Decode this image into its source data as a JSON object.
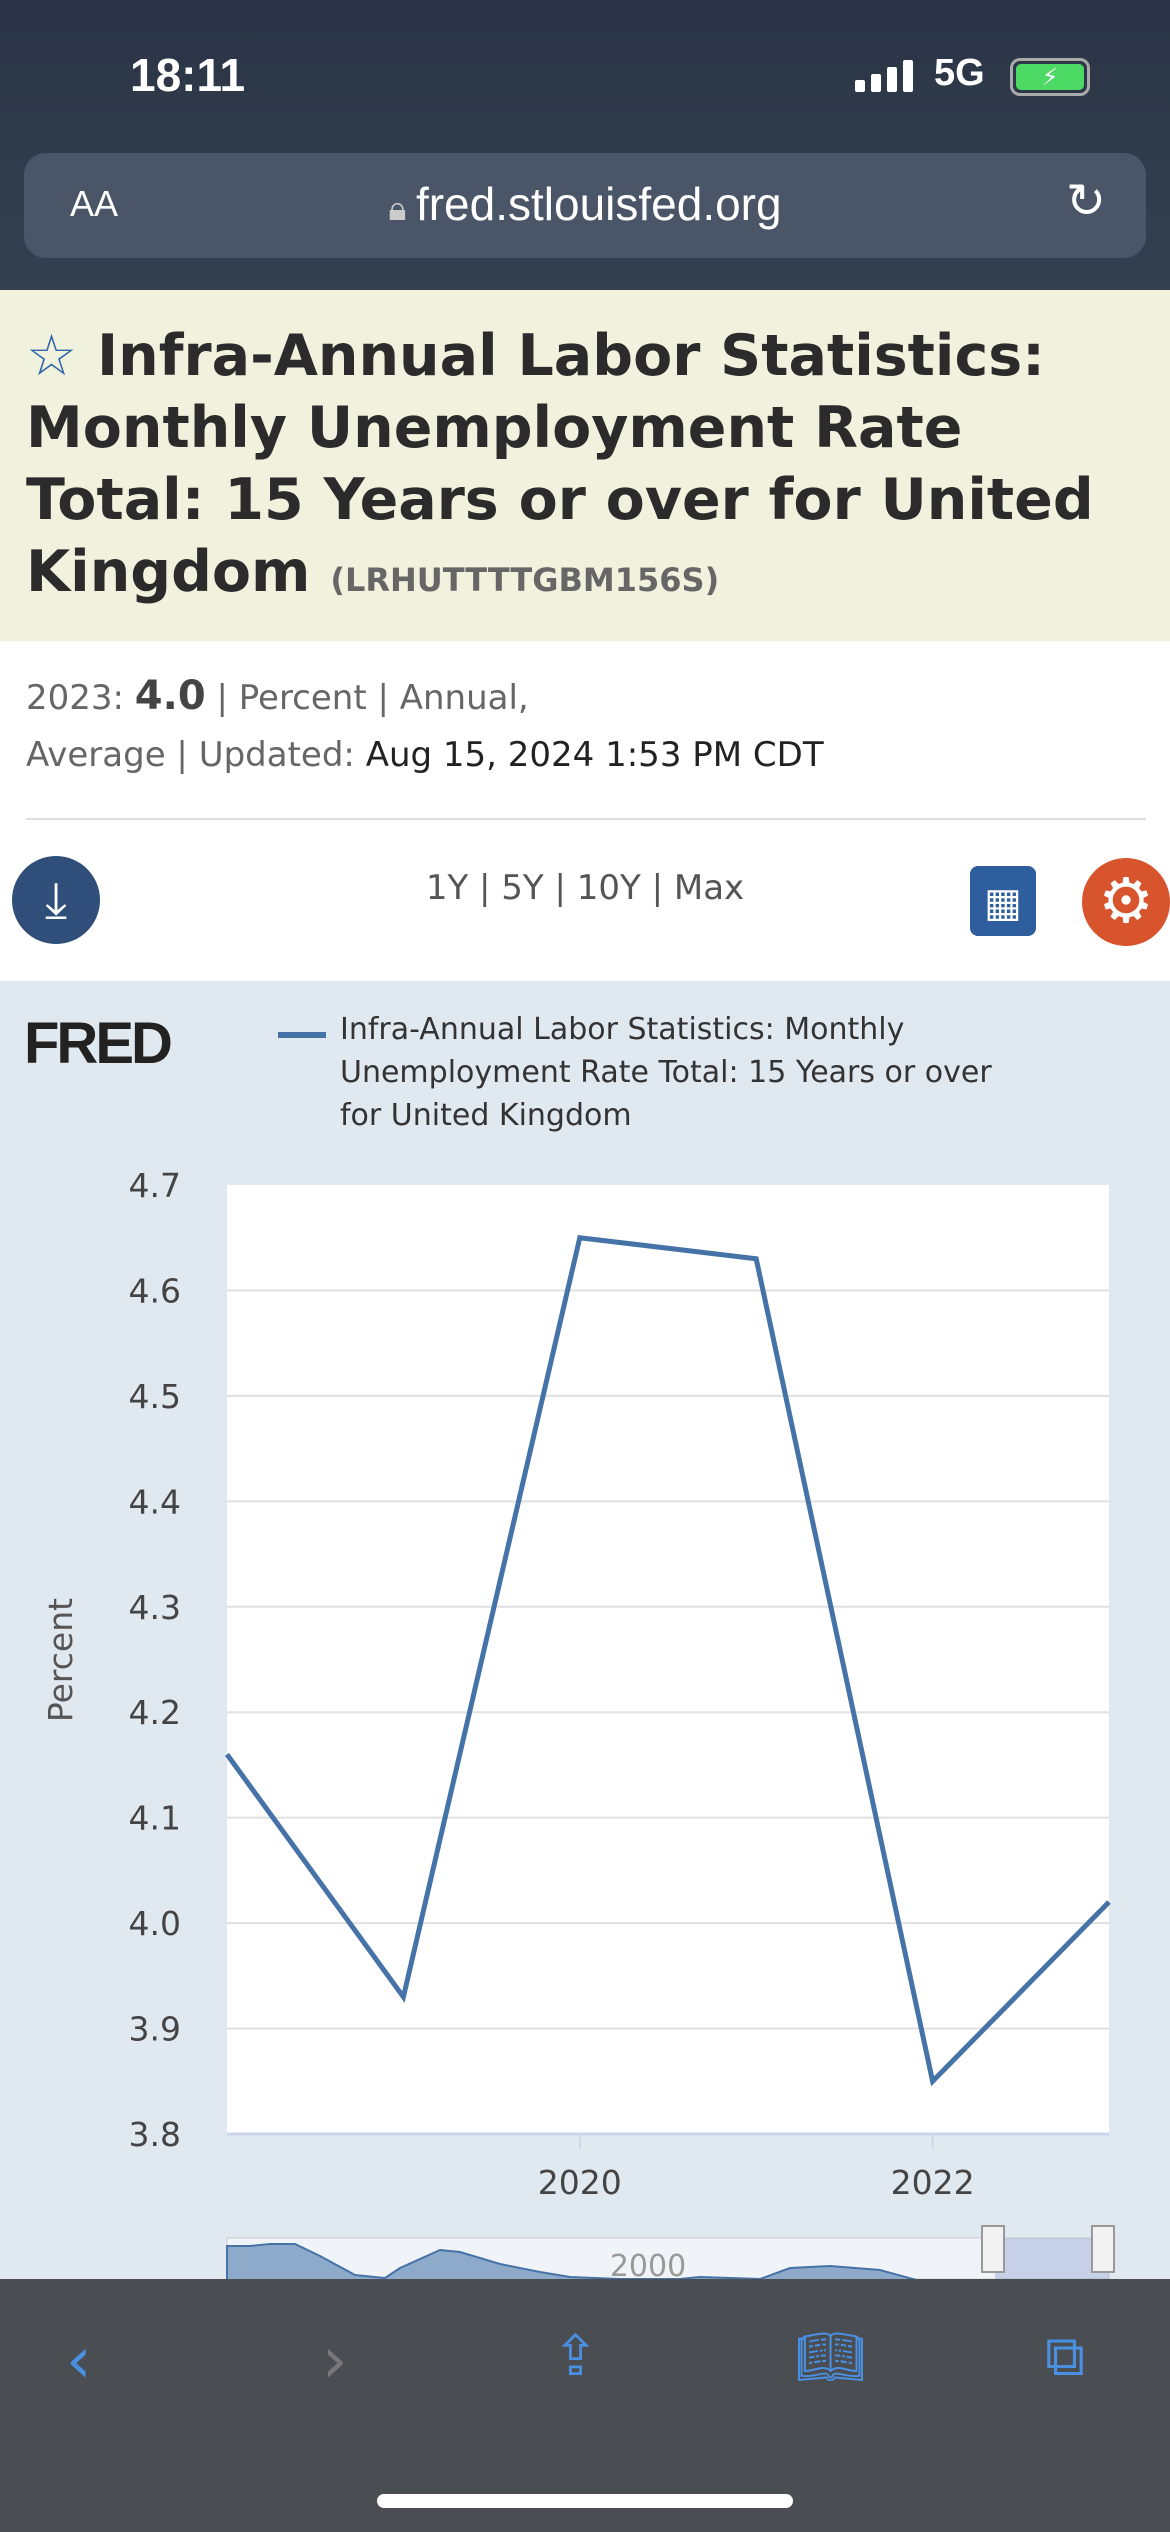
{
  "status": {
    "time": "18:11",
    "network": "5G"
  },
  "browser": {
    "aa": "AA",
    "host": "fred.stlouisfed.org"
  },
  "series": {
    "title": "Infra-Annual Labor Statistics: Monthly Unemployment Rate Total: 15 Years or over for United Kingdom",
    "id": "(LRHUTTTTGBM156S)"
  },
  "meta": {
    "year_label": "2023:",
    "value": "4.0",
    "units": "| Percent | Annual,",
    "agg": "Average | Updated:",
    "updated": "Aug 15, 2024 1:53 PM CDT"
  },
  "ranges": "1Y | 5Y | 10Y | Max",
  "logo": "FRED",
  "chart_data": {
    "type": "line",
    "title": "",
    "legend": "Infra-Annual Labor Statistics: Monthly Unemployment Rate Total: 15 Years or over for United Kingdom",
    "ylabel": "Percent",
    "xlabel": "",
    "ylim": [
      3.8,
      4.7
    ],
    "xlim": [
      2018,
      2023
    ],
    "x": [
      2018,
      2019,
      2020,
      2021,
      2022,
      2023
    ],
    "values": [
      4.16,
      3.93,
      4.65,
      4.63,
      3.85,
      4.02
    ],
    "yticks": [
      "3.8",
      "3.9",
      "4.0",
      "4.1",
      "4.2",
      "4.3",
      "4.4",
      "4.5",
      "4.6",
      "4.7"
    ],
    "xticks": [
      "2020",
      "2022"
    ],
    "navigator_label": "2000",
    "color": "#4572a7"
  }
}
